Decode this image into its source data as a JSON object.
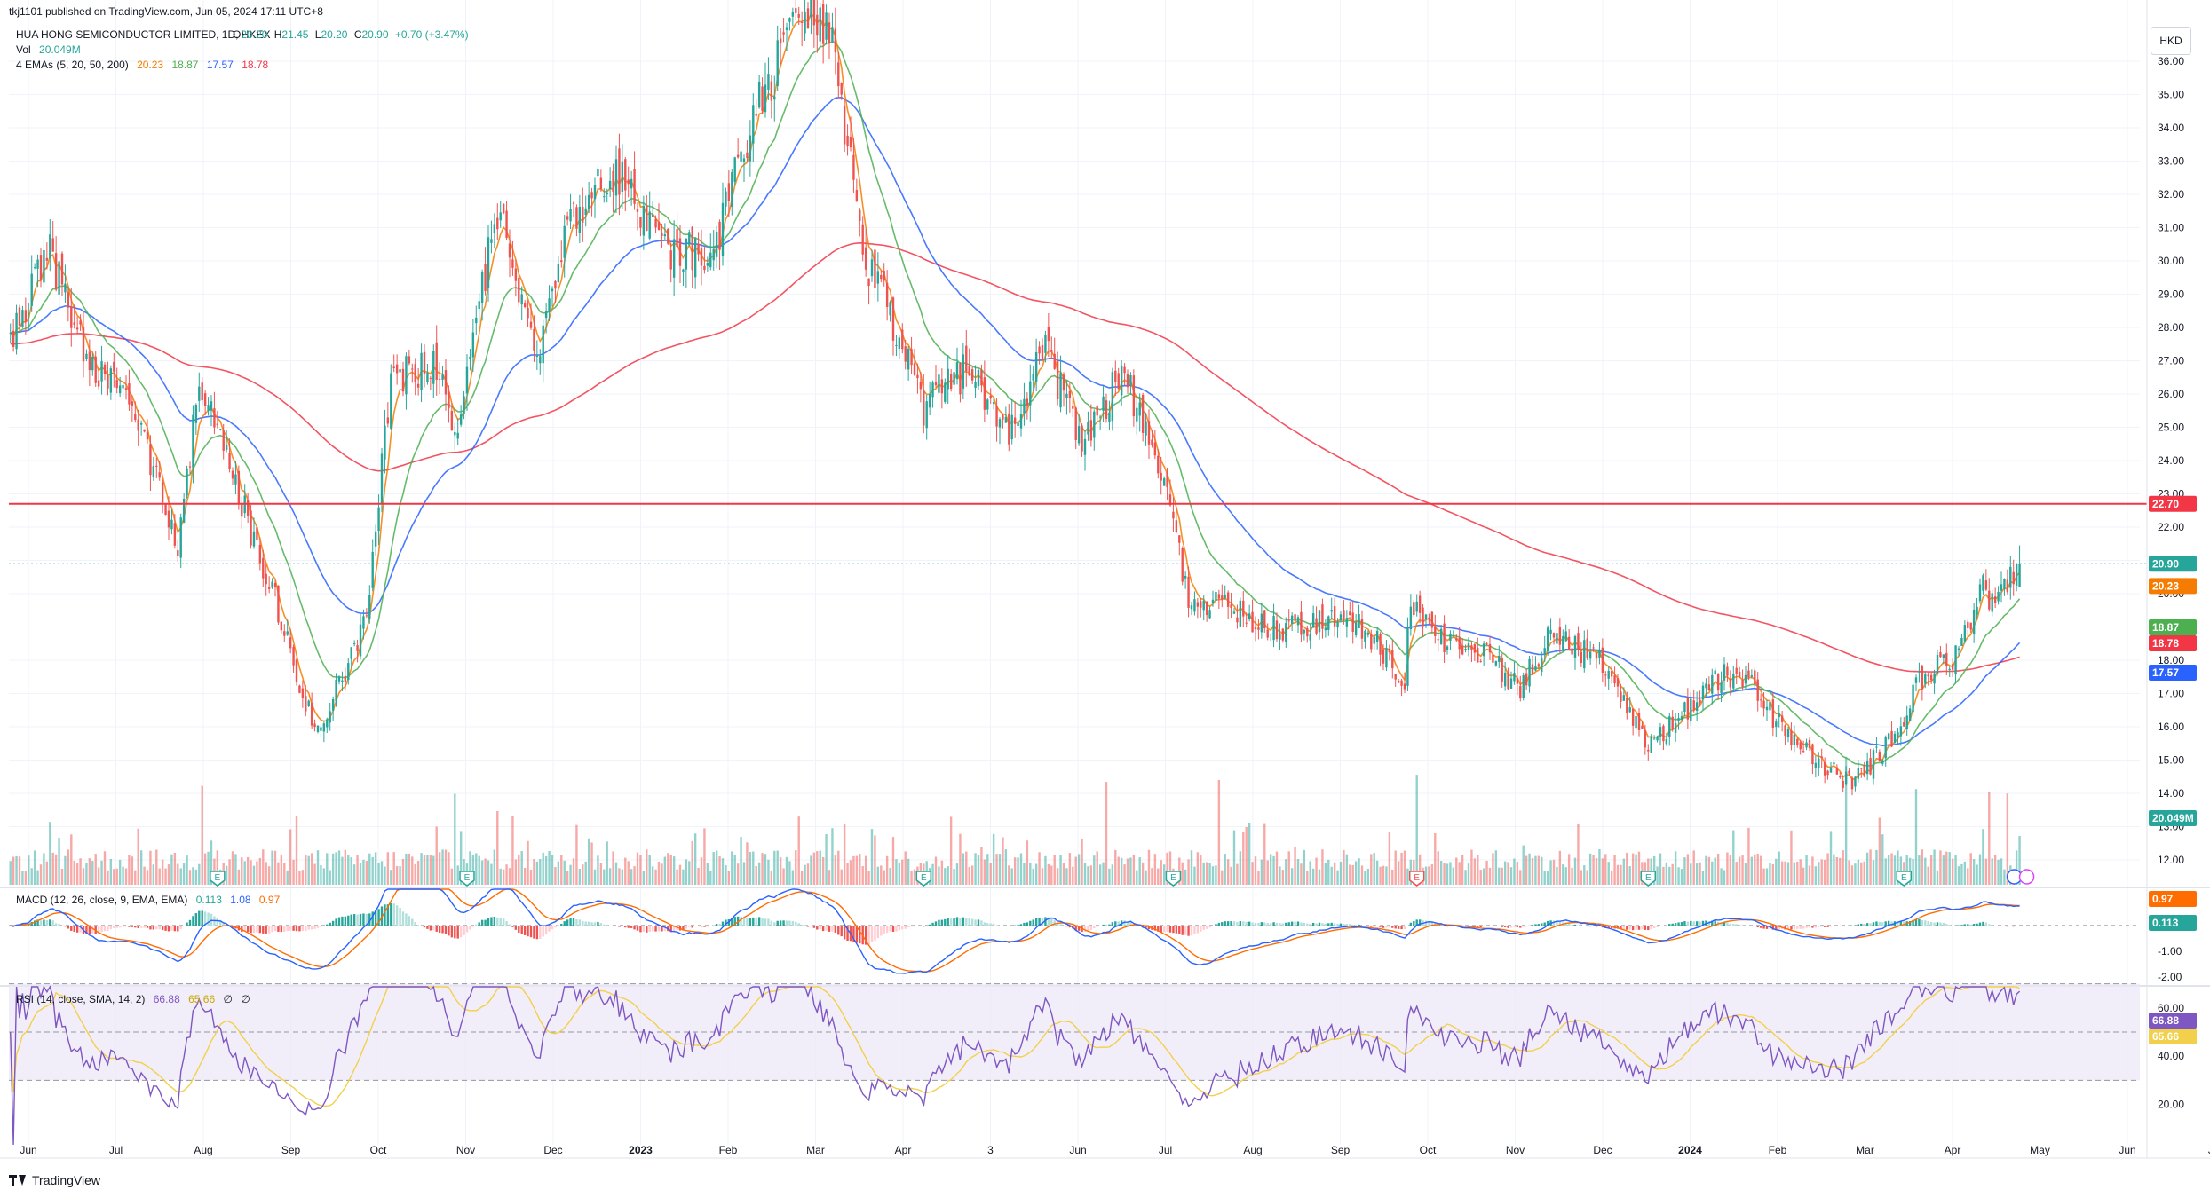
{
  "publisher_line": "tkj1101 published on TradingView.com, Jun 05, 2024 17:11 UTC+8",
  "currency_button": "HKD",
  "footer_brand": "TradingView",
  "legend": {
    "symbol": "HUA HONG SEMICONDUCTOR LIMITED, 1D, HKEX",
    "ohlc": [
      {
        "k": "O",
        "v": "20.20"
      },
      {
        "k": "H",
        "v": "21.45"
      },
      {
        "k": "L",
        "v": "20.20"
      },
      {
        "k": "C",
        "v": "20.90"
      }
    ],
    "change": "+0.70 (+3.47%)",
    "vol_label": "Vol",
    "vol_value": "20.049M",
    "emas_label": "4 EMAs (5, 20, 50, 200)",
    "emas_values": [
      "20.23",
      "18.87",
      "17.57",
      "18.78"
    ],
    "macd_label": "MACD (12, 26, close, 9, EMA, EMA)",
    "macd_values": [
      "0.113",
      "1.08",
      "0.97"
    ],
    "rsi_label": "RSI (14, close, SMA, 14, 2)",
    "rsi_values": [
      "66.88",
      "65.66",
      "∅",
      "∅"
    ]
  },
  "colors": {
    "up": "#26a69a",
    "down": "#ef5350",
    "ema5": "#f57c00",
    "ema20": "#4caf50",
    "ema50": "#2962ff",
    "ema200": "#f23645",
    "hline": "#f23645",
    "macd": "#2962ff",
    "signal": "#ff6d00",
    "rsi": "#7e57c2",
    "rsi_ma": "#f2d04b",
    "rsi_band": "#ede7f6"
  },
  "chart_data": {
    "type": "candlestick",
    "price_axis": {
      "ticks": [
        "12.00",
        "13.00",
        "14.00",
        "15.00",
        "16.00",
        "17.00",
        "18.00",
        "19.00",
        "20.00",
        "21.00",
        "22.00",
        "23.00",
        "24.00",
        "25.00",
        "26.00",
        "27.00",
        "28.00",
        "29.00",
        "30.00",
        "31.00",
        "32.00",
        "33.00",
        "34.00",
        "35.00",
        "36.00"
      ],
      "range": [
        11.2,
        36.9
      ]
    },
    "time_axis": [
      "Jun",
      "Jul",
      "Aug",
      "Sep",
      "Oct",
      "Nov",
      "Dec",
      "2023",
      "Feb",
      "Mar",
      "Apr",
      "3",
      "Jun",
      "Jul",
      "Aug",
      "Sep",
      "Oct",
      "Nov",
      "Dec",
      "2024",
      "Feb",
      "Mar",
      "Apr",
      "May",
      "Jun",
      "Jul"
    ],
    "price_keypoints": [
      [
        0,
        27.3
      ],
      [
        12,
        30.5
      ],
      [
        25,
        27.0
      ],
      [
        40,
        25.5
      ],
      [
        55,
        21.6
      ],
      [
        62,
        26.3
      ],
      [
        72,
        23.8
      ],
      [
        88,
        19.5
      ],
      [
        100,
        15.9
      ],
      [
        110,
        17.6
      ],
      [
        117,
        19.5
      ],
      [
        125,
        26.5
      ],
      [
        140,
        26.8
      ],
      [
        147,
        24.9
      ],
      [
        160,
        31.6
      ],
      [
        172,
        27.0
      ],
      [
        185,
        31.6
      ],
      [
        200,
        32.6
      ],
      [
        215,
        30.3
      ],
      [
        230,
        30.1
      ],
      [
        245,
        34.6
      ],
      [
        262,
        37.6
      ],
      [
        270,
        37.1
      ],
      [
        280,
        30.0
      ],
      [
        288,
        28.6
      ],
      [
        300,
        25.6
      ],
      [
        315,
        26.8
      ],
      [
        328,
        25.0
      ],
      [
        340,
        27.3
      ],
      [
        352,
        24.6
      ],
      [
        365,
        26.6
      ],
      [
        378,
        23.9
      ],
      [
        388,
        19.4
      ],
      [
        396,
        19.9
      ],
      [
        410,
        19.0
      ],
      [
        425,
        19.0
      ],
      [
        432,
        19.2
      ],
      [
        445,
        19.0
      ],
      [
        458,
        17.3
      ],
      [
        460,
        19.8
      ],
      [
        470,
        18.7
      ],
      [
        485,
        18.1
      ],
      [
        496,
        17.2
      ],
      [
        507,
        18.9
      ],
      [
        525,
        17.7
      ],
      [
        537,
        15.5
      ],
      [
        548,
        16.2
      ],
      [
        562,
        17.5
      ],
      [
        570,
        17.6
      ],
      [
        582,
        15.9
      ],
      [
        595,
        14.9
      ],
      [
        605,
        14.3
      ],
      [
        618,
        15.6
      ],
      [
        628,
        17.5
      ],
      [
        640,
        18.2
      ],
      [
        648,
        20.2
      ],
      [
        652,
        19.5
      ],
      [
        660,
        20.9
      ]
    ],
    "ema_last": {
      "EMA5": 20.23,
      "EMA20": 18.87,
      "EMA50": 17.57,
      "EMA200": 18.78
    },
    "last_close": 20.9,
    "horizontal_line": 22.7,
    "volume_last": "20.049M",
    "volume_spike_days": [
      63,
      146,
      160,
      360,
      397,
      462,
      603,
      626,
      650,
      656
    ],
    "earnings_days": [
      68,
      150,
      300,
      382,
      462,
      538,
      622
    ],
    "macd": {
      "axis_ticks": [
        "-2.00",
        "-1.00"
      ],
      "macd_last": 1.08,
      "signal_last": 0.97,
      "hist_last": 0.113
    },
    "rsi": {
      "axis_ticks": [
        "20.00",
        "40.00",
        "60.00"
      ],
      "upper": 70,
      "lower": 30,
      "middle": 50,
      "rsi_last": 66.88,
      "ma_last": 65.66
    }
  }
}
